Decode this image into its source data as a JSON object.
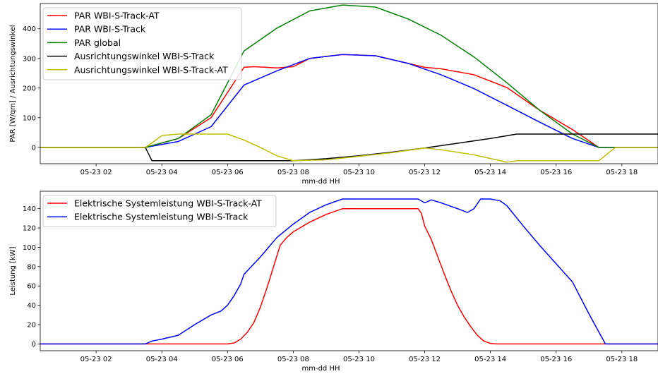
{
  "chart_data": [
    {
      "type": "line",
      "xlabel": "mm-dd HH",
      "ylabel": "PAR [W/qm] / Ausrichtungswinkel",
      "xlim": [
        0.3,
        19.1
      ],
      "ylim": [
        -55,
        485
      ],
      "x_ticks": [
        2,
        4,
        6,
        8,
        10,
        12,
        14,
        16,
        18
      ],
      "x_tick_labels": [
        "05-23 02",
        "05-23 04",
        "05-23 06",
        "05-23 08",
        "05-23 10",
        "05-23 12",
        "05-23 14",
        "05-23 16",
        "05-23 18"
      ],
      "y_ticks": [
        0,
        100,
        200,
        300,
        400
      ],
      "y_tick_labels": [
        "0",
        "100",
        "200",
        "300",
        "400"
      ],
      "legend_position": "top-left",
      "grid": false,
      "series": [
        {
          "name": "PAR WBI-S-Track-AT",
          "color": "#ff0000",
          "x": [
            0.3,
            3.5,
            4.5,
            5.5,
            6.5,
            6.8,
            7.5,
            8.0,
            8.5,
            9.5,
            10.5,
            11.5,
            12.0,
            12.5,
            13.5,
            14.5,
            15.5,
            16.5,
            17.3,
            19.1
          ],
          "y": [
            0,
            0,
            30,
            100,
            270,
            272,
            268,
            272,
            300,
            313,
            309,
            283,
            270,
            265,
            245,
            202,
            125,
            60,
            0,
            0
          ]
        },
        {
          "name": "PAR WBI-S-Track",
          "color": "#0000ff",
          "x": [
            0.3,
            3.5,
            4.5,
            5.5,
            6.5,
            7.5,
            8.5,
            9.5,
            10.5,
            11.5,
            12.5,
            13.5,
            14.5,
            15.5,
            16.5,
            17.3,
            19.1
          ],
          "y": [
            0,
            0,
            20,
            70,
            210,
            258,
            300,
            313,
            309,
            283,
            245,
            198,
            142,
            85,
            30,
            0,
            0
          ]
        },
        {
          "name": "PAR global",
          "color": "#008000",
          "x": [
            0.3,
            3.5,
            4.5,
            5.5,
            6.5,
            7.5,
            8.5,
            9.5,
            10.5,
            11.5,
            12.5,
            13.5,
            14.5,
            15.5,
            16.5,
            17.3,
            19.1
          ],
          "y": [
            0,
            0,
            30,
            110,
            325,
            402,
            460,
            480,
            473,
            433,
            378,
            305,
            218,
            125,
            45,
            0,
            0
          ]
        },
        {
          "name": "Ausrichtungswinkel WBI-S-Track",
          "color": "#000000",
          "x": [
            0.3,
            3.5,
            3.7,
            7.0,
            8.0,
            9.0,
            10.0,
            11.0,
            12.0,
            13.0,
            14.0,
            14.8,
            19.1
          ],
          "y": [
            0,
            0,
            -45,
            -45,
            -45,
            -38,
            -28,
            -16,
            -2,
            14,
            30,
            45,
            45
          ]
        },
        {
          "name": "Ausrichtungswinkel WBI-S-Track-AT",
          "color": "#bfbf00",
          "x": [
            0.3,
            3.5,
            3.7,
            4.0,
            4.5,
            6.0,
            6.5,
            7.0,
            7.5,
            8.0,
            9.0,
            10.0,
            11.0,
            12.0,
            12.5,
            13.5,
            14.5,
            14.8,
            17.3,
            17.8,
            19.1
          ],
          "y": [
            0,
            0,
            15,
            40,
            45,
            45,
            25,
            0,
            -28,
            -45,
            -42,
            -30,
            -18,
            -2,
            -8,
            -25,
            -50,
            -45,
            -45,
            0,
            0
          ]
        }
      ]
    },
    {
      "type": "line",
      "xlabel": "mm-dd HH",
      "ylabel": "Leistung [kW]",
      "xlim": [
        0.3,
        19.1
      ],
      "ylim": [
        -7,
        158
      ],
      "x_ticks": [
        2,
        4,
        6,
        8,
        10,
        12,
        14,
        16,
        18
      ],
      "x_tick_labels": [
        "05-23 02",
        "05-23 04",
        "05-23 06",
        "05-23 08",
        "05-23 10",
        "05-23 12",
        "05-23 14",
        "05-23 16",
        "05-23 18"
      ],
      "y_ticks": [
        0,
        20,
        40,
        60,
        80,
        100,
        120,
        140
      ],
      "y_tick_labels": [
        "0",
        "20",
        "40",
        "60",
        "80",
        "100",
        "120",
        "140"
      ],
      "legend_position": "top-left",
      "grid": false,
      "series": [
        {
          "name": "Elektrische Systemleistung WBI-S-Track-AT",
          "color": "#ff0000",
          "x": [
            0.3,
            6.0,
            6.2,
            6.4,
            6.6,
            6.8,
            7.0,
            7.2,
            7.4,
            7.6,
            7.8,
            8.0,
            8.5,
            9.0,
            9.5,
            10.0,
            11.0,
            11.8,
            11.9,
            12.0,
            12.2,
            12.4,
            12.6,
            12.8,
            13.0,
            13.2,
            13.4,
            13.6,
            13.8,
            14.0,
            14.2,
            14.5,
            19.1
          ],
          "y": [
            0,
            0,
            1,
            5,
            12,
            22,
            38,
            58,
            80,
            102,
            110,
            116,
            126,
            134,
            140,
            140,
            140,
            140,
            135,
            122,
            108,
            90,
            72,
            55,
            40,
            28,
            18,
            9,
            3,
            0.5,
            0,
            0,
            0
          ]
        },
        {
          "name": "Elektrische Systemleistung WBI-S-Track",
          "color": "#0000ff",
          "x": [
            0.3,
            3.5,
            3.7,
            4.0,
            4.5,
            5.0,
            5.5,
            5.8,
            6.0,
            6.2,
            6.4,
            6.5,
            7.0,
            7.5,
            8.0,
            8.5,
            9.0,
            9.5,
            10.0,
            11.0,
            11.8,
            12.0,
            12.2,
            12.5,
            13.0,
            13.3,
            13.5,
            13.7,
            14.0,
            14.3,
            14.5,
            15.0,
            15.5,
            16.0,
            16.5,
            17.0,
            17.5,
            19.1
          ],
          "y": [
            0,
            0,
            3,
            5,
            9,
            20,
            30,
            34,
            40,
            50,
            62,
            72,
            90,
            110,
            124,
            136,
            144,
            150,
            150,
            150,
            150,
            146,
            149,
            146,
            140,
            136,
            140,
            150,
            150,
            148,
            143,
            122,
            102,
            83,
            64,
            31,
            0,
            0
          ]
        }
      ]
    }
  ]
}
